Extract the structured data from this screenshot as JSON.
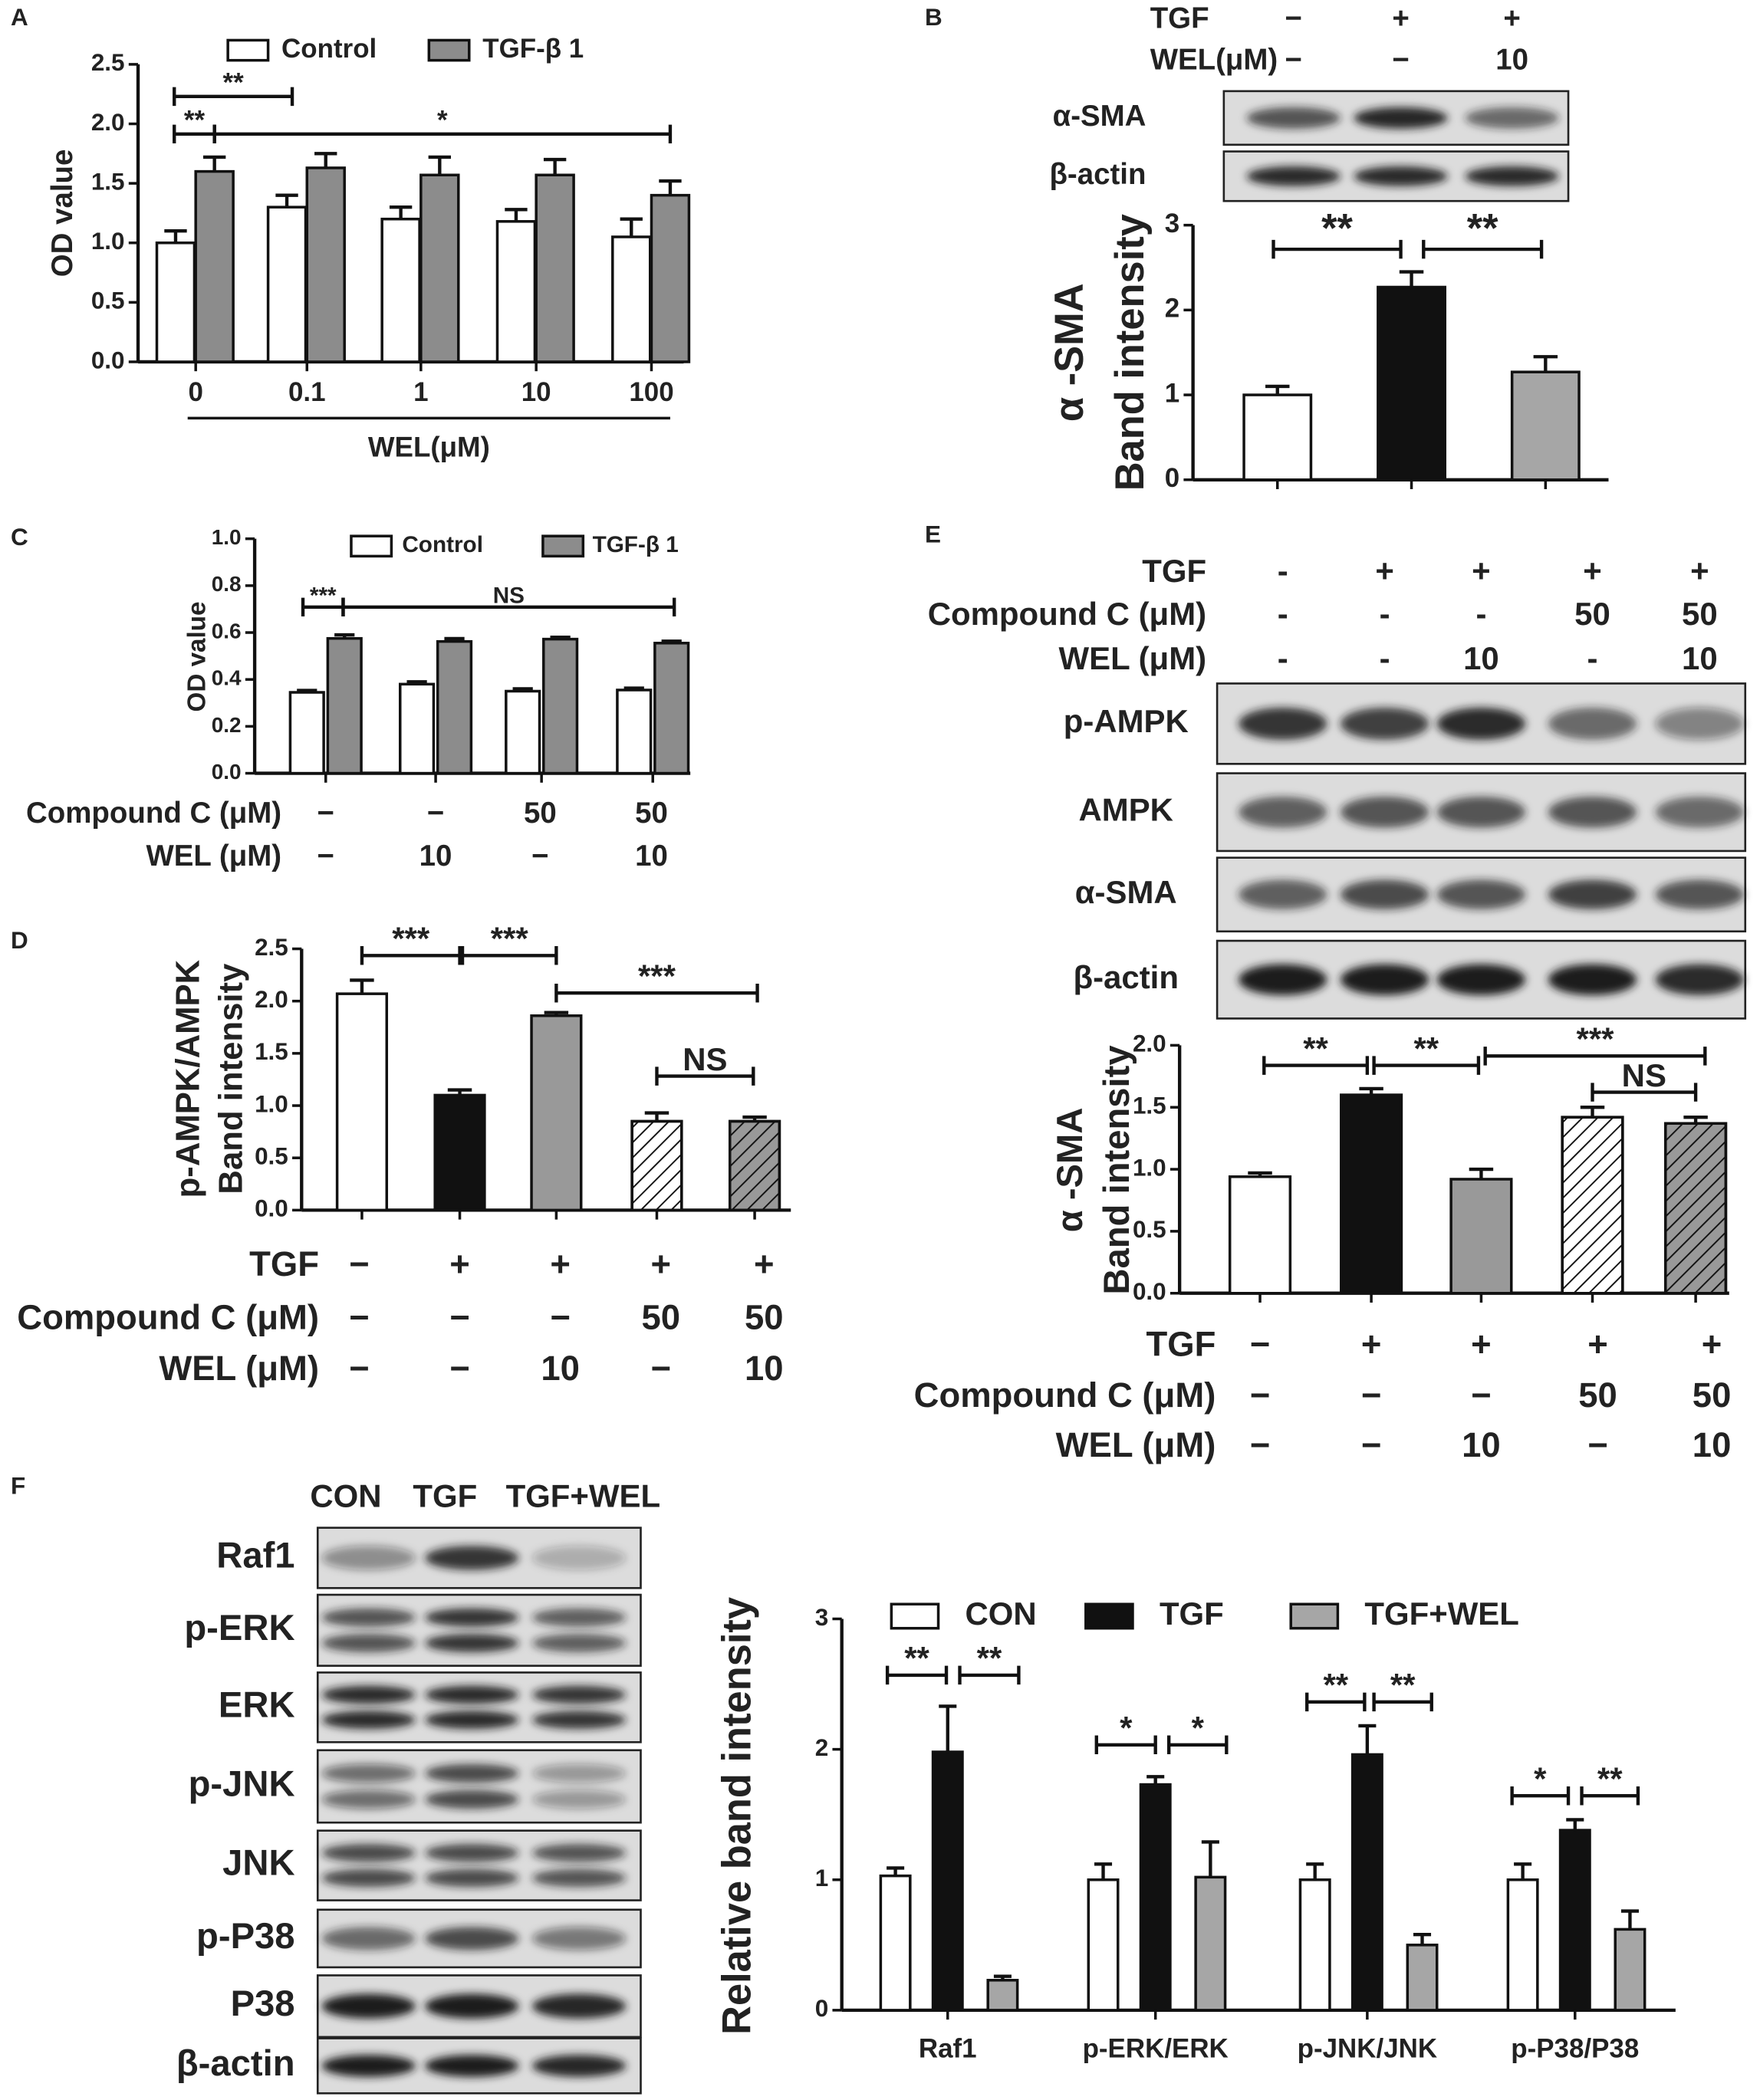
{
  "chart_data": [
    {
      "panel": "A",
      "type": "grouped_bar",
      "ylabel": "OD value",
      "xlabel": "WEL(μM)",
      "categories": [
        "0",
        "0.1",
        "1",
        "10",
        "100"
      ],
      "series": [
        {
          "name": "Control",
          "color": "#ffffff",
          "values": [
            1.0,
            1.3,
            1.2,
            1.18,
            1.05
          ],
          "errors": [
            0.1,
            0.1,
            0.1,
            0.1,
            0.15
          ]
        },
        {
          "name": "TGF-β 1",
          "color": "#8c8c8c",
          "values": [
            1.6,
            1.63,
            1.57,
            1.57,
            1.4
          ],
          "errors": [
            0.12,
            0.12,
            0.15,
            0.13,
            0.12
          ]
        }
      ],
      "ylim": [
        0,
        2.5
      ],
      "yticks": [
        {
          "value": 0,
          "label": "0.0"
        },
        0.5,
        {
          "value": 1,
          "label": "1.0"
        },
        1.5,
        {
          "value": 2,
          "label": "2.0"
        },
        2.5
      ],
      "annotations": [
        "**",
        "**",
        "*"
      ]
    },
    {
      "panel": "B",
      "type": "bar",
      "blot_conditions": [
        {
          "label": "TGF",
          "values": [
            "−",
            "+",
            "+"
          ]
        },
        {
          "label": "WEL(μM)",
          "values": [
            "−",
            "−",
            "10"
          ]
        }
      ],
      "blot_rows": [
        "α-SMA",
        "β-actin"
      ],
      "ylabel": [
        "α -SMA",
        "Band intensity"
      ],
      "values": [
        1.0,
        2.27,
        1.27
      ],
      "errors": [
        0.1,
        0.18,
        0.18
      ],
      "colors": [
        "#ffffff",
        "#111111",
        "#a6a6a6"
      ],
      "ylim": [
        0,
        3
      ],
      "yticks": [
        0,
        1,
        2,
        3
      ],
      "annotations": [
        "**",
        "**"
      ]
    },
    {
      "panel": "C",
      "type": "grouped_bar",
      "ylabel": "OD value",
      "series": [
        {
          "name": "Control",
          "color": "#ffffff",
          "values": [
            0.345,
            0.38,
            0.35,
            0.355
          ],
          "errors": [
            0.008,
            0.01,
            0.01,
            0.008
          ]
        },
        {
          "name": "TGF-β 1",
          "color": "#8c8c8c",
          "values": [
            0.575,
            0.562,
            0.572,
            0.555
          ],
          "errors": [
            0.015,
            0.012,
            0.008,
            0.008
          ]
        }
      ],
      "ylim": [
        0,
        1
      ],
      "yticks": [
        {
          "value": 0,
          "label": "0.0"
        },
        0.2,
        0.4,
        0.6,
        0.8,
        {
          "value": 1,
          "label": "1.0"
        }
      ],
      "annotations": [
        "***",
        "NS"
      ],
      "conditions": [
        {
          "label": "Compound C (μM)",
          "values": [
            "−",
            "−",
            "50",
            "50"
          ]
        },
        {
          "label": "WEL (μM)",
          "values": [
            "−",
            "10",
            "−",
            "10"
          ]
        }
      ]
    },
    {
      "panel": "D",
      "type": "bar",
      "ylabel": [
        "p-AMPK/AMPK",
        "Band intensity"
      ],
      "values": [
        2.07,
        1.1,
        1.86,
        0.85,
        0.85
      ],
      "errors": [
        0.13,
        0.05,
        0.03,
        0.08,
        0.04
      ],
      "colors": [
        "#ffffff",
        "#111111",
        "#999999",
        "#ffffff",
        "#999999"
      ],
      "patterns": [
        "solid",
        "solid",
        "solid",
        "hatch",
        "hatch"
      ],
      "ylim": [
        0,
        2.5
      ],
      "yticks": [
        {
          "value": 0,
          "label": "0.0"
        },
        0.5,
        {
          "value": 1,
          "label": "1.0"
        },
        1.5,
        {
          "value": 2,
          "label": "2.0"
        },
        2.5
      ],
      "annotations": [
        "***",
        "***",
        "***",
        "NS"
      ],
      "conditions": [
        {
          "label": "TGF",
          "values": [
            "−",
            "+",
            "+",
            "+",
            "+"
          ]
        },
        {
          "label": "Compound C (μM)",
          "values": [
            "−",
            "−",
            "−",
            "50",
            "50"
          ]
        },
        {
          "label": "WEL (μM)",
          "values": [
            "−",
            "−",
            "10",
            "−",
            "10"
          ]
        }
      ]
    },
    {
      "panel": "E",
      "type": "bar",
      "blot_conditions": [
        {
          "label": "TGF",
          "values": [
            "-",
            "+",
            "+",
            "+",
            "+"
          ]
        },
        {
          "label": "Compound C (μM)",
          "values": [
            "-",
            "-",
            "-",
            "50",
            "50"
          ]
        },
        {
          "label": "WEL (μM)",
          "values": [
            "-",
            "-",
            "10",
            "-",
            "10"
          ]
        }
      ],
      "blot_rows": [
        "p-AMPK",
        "AMPK",
        "α-SMA",
        "β-actin"
      ],
      "ylabel": [
        "α -SMA",
        "Band intensity"
      ],
      "values": [
        0.94,
        1.6,
        0.92,
        1.42,
        1.37
      ],
      "errors": [
        0.03,
        0.05,
        0.08,
        0.08,
        0.05
      ],
      "colors": [
        "#ffffff",
        "#111111",
        "#999999",
        "#ffffff",
        "#999999"
      ],
      "patterns": [
        "solid",
        "solid",
        "solid",
        "hatch",
        "hatch"
      ],
      "ylim": [
        0,
        2
      ],
      "yticks": [
        {
          "value": 0,
          "label": "0.0"
        },
        0.5,
        {
          "value": 1,
          "label": "1.0"
        },
        1.5,
        {
          "value": 2,
          "label": "2.0"
        }
      ],
      "annotations": [
        "**",
        "**",
        "***",
        "NS"
      ],
      "conditions": [
        {
          "label": "TGF",
          "values": [
            "−",
            "+",
            "+",
            "+",
            "+"
          ]
        },
        {
          "label": "Compound C (μM)",
          "values": [
            "−",
            "−",
            "−",
            "50",
            "50"
          ]
        },
        {
          "label": "WEL (μM)",
          "values": [
            "−",
            "−",
            "10",
            "−",
            "10"
          ]
        }
      ]
    },
    {
      "panel": "F",
      "type": "grouped_bar",
      "blot_columns": [
        "CON",
        "TGF",
        "TGF+WEL"
      ],
      "blot_rows": [
        "Raf1",
        "p-ERK",
        "ERK",
        "p-JNK",
        "JNK",
        "p-P38",
        "P38",
        "β-actin"
      ],
      "ylabel": "Relative band intensity",
      "categories": [
        "Raf1",
        "p-ERK/ERK",
        "p-JNK/JNK",
        "p-P38/P38"
      ],
      "series": [
        {
          "name": "CON",
          "color": "#ffffff",
          "values": [
            1.03,
            1.0,
            1.0,
            1.0
          ],
          "errors": [
            0.06,
            0.12,
            0.12,
            0.12
          ]
        },
        {
          "name": "TGF",
          "color": "#111111",
          "values": [
            1.98,
            1.73,
            1.96,
            1.38
          ],
          "errors": [
            0.35,
            0.06,
            0.22,
            0.08
          ]
        },
        {
          "name": "TGF+WEL",
          "color": "#a6a6a6",
          "values": [
            0.23,
            1.02,
            0.5,
            0.62
          ],
          "errors": [
            0.03,
            0.27,
            0.08,
            0.14
          ]
        }
      ],
      "ylim": [
        0,
        3
      ],
      "yticks": [
        0,
        1,
        2,
        3
      ],
      "annotations": [
        "**",
        "**",
        "*",
        "*",
        "**",
        "**",
        "*",
        "**"
      ]
    }
  ]
}
